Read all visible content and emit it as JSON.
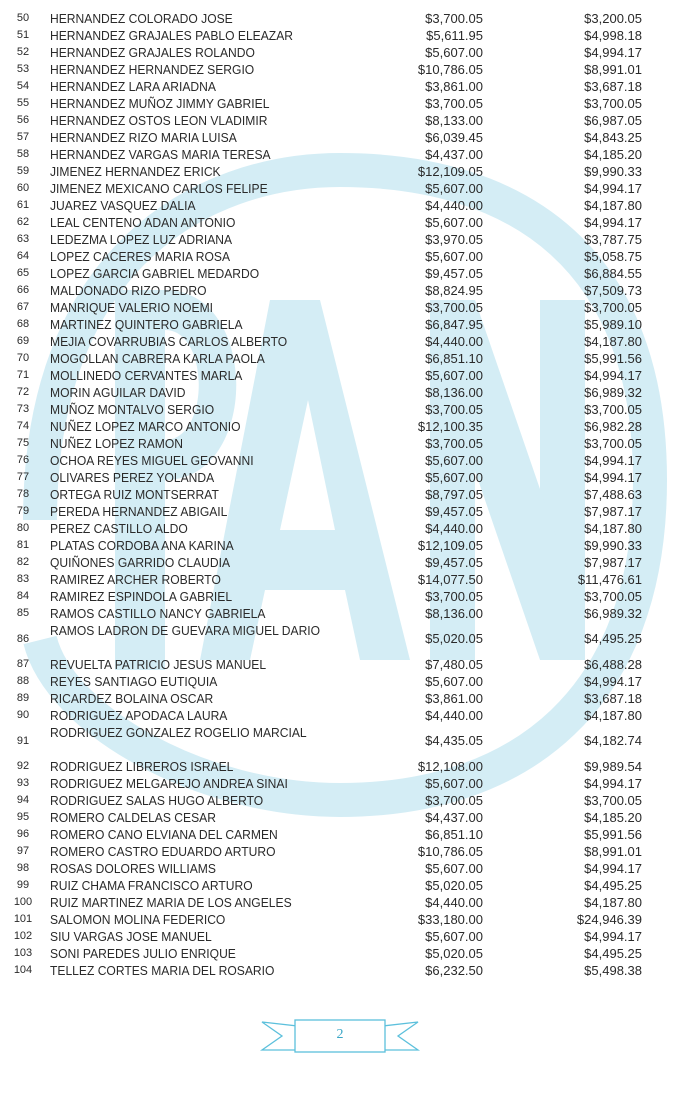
{
  "watermark": {
    "logo_text": "PAN",
    "color": "#d4edf5"
  },
  "accent_color": "#3aa6c6",
  "rows": [
    {
      "n": "50",
      "name": "HERNANDEZ COLORADO JOSE",
      "a": "$3,700.05",
      "b": "$3,200.05"
    },
    {
      "n": "51",
      "name": "HERNANDEZ GRAJALES PABLO ELEAZAR",
      "a": "$5,611.95",
      "b": "$4,998.18"
    },
    {
      "n": "52",
      "name": "HERNANDEZ GRAJALES ROLANDO",
      "a": "$5,607.00",
      "b": "$4,994.17"
    },
    {
      "n": "53",
      "name": "HERNANDEZ HERNANDEZ SERGIO",
      "a": "$10,786.05",
      "b": "$8,991.01"
    },
    {
      "n": "54",
      "name": "HERNANDEZ LARA ARIADNA",
      "a": "$3,861.00",
      "b": "$3,687.18"
    },
    {
      "n": "55",
      "name": "HERNANDEZ MUÑOZ JIMMY GABRIEL",
      "a": "$3,700.05",
      "b": "$3,700.05"
    },
    {
      "n": "56",
      "name": "HERNANDEZ OSTOS LEON VLADIMIR",
      "a": "$8,133.00",
      "b": "$6,987.05"
    },
    {
      "n": "57",
      "name": "HERNANDEZ RIZO MARIA LUISA",
      "a": "$6,039.45",
      "b": "$4,843.25"
    },
    {
      "n": "58",
      "name": "HERNANDEZ VARGAS MARIA TERESA",
      "a": "$4,437.00",
      "b": "$4,185.20"
    },
    {
      "n": "59",
      "name": "JIMENEZ HERNANDEZ ERICK",
      "a": "$12,109.05",
      "b": "$9,990.33"
    },
    {
      "n": "60",
      "name": "JIMENEZ MEXICANO CARLOS FELIPE",
      "a": "$5,607.00",
      "b": "$4,994.17"
    },
    {
      "n": "61",
      "name": "JUAREZ VASQUEZ DALIA",
      "a": "$4,440.00",
      "b": "$4,187.80"
    },
    {
      "n": "62",
      "name": "LEAL CENTENO ADAN ANTONIO",
      "a": "$5,607.00",
      "b": "$4,994.17"
    },
    {
      "n": "63",
      "name": "LEDEZMA LOPEZ LUZ ADRIANA",
      "a": "$3,970.05",
      "b": "$3,787.75"
    },
    {
      "n": "64",
      "name": "LOPEZ CACERES MARIA ROSA",
      "a": "$5,607.00",
      "b": "$5,058.75"
    },
    {
      "n": "65",
      "name": "LOPEZ GARCIA GABRIEL MEDARDO",
      "a": "$9,457.05",
      "b": "$6,884.55"
    },
    {
      "n": "66",
      "name": "MALDONADO RIZO PEDRO",
      "a": "$8,824.95",
      "b": "$7,509.73"
    },
    {
      "n": "67",
      "name": "MANRIQUE VALERIO NOEMI",
      "a": "$3,700.05",
      "b": "$3,700.05"
    },
    {
      "n": "68",
      "name": "MARTINEZ QUINTERO GABRIELA",
      "a": "$6,847.95",
      "b": "$5,989.10"
    },
    {
      "n": "69",
      "name": "MEJIA COVARRUBIAS CARLOS ALBERTO",
      "a": "$4,440.00",
      "b": "$4,187.80"
    },
    {
      "n": "70",
      "name": "MOGOLLAN CABRERA KARLA PAOLA",
      "a": "$6,851.10",
      "b": "$5,991.56"
    },
    {
      "n": "71",
      "name": "MOLLINEDO CERVANTES MARLA",
      "a": "$5,607.00",
      "b": "$4,994.17"
    },
    {
      "n": "72",
      "name": "MORIN AGUILAR DAVID",
      "a": "$8,136.00",
      "b": "$6,989.32"
    },
    {
      "n": "73",
      "name": "MUÑOZ MONTALVO SERGIO",
      "a": "$3,700.05",
      "b": "$3,700.05"
    },
    {
      "n": "74",
      "name": "NUÑEZ LOPEZ MARCO ANTONIO",
      "a": "$12,100.35",
      "b": "$6,982.28"
    },
    {
      "n": "75",
      "name": "NUÑEZ LOPEZ RAMON",
      "a": "$3,700.05",
      "b": "$3,700.05"
    },
    {
      "n": "76",
      "name": "OCHOA REYES MIGUEL GEOVANNI",
      "a": "$5,607.00",
      "b": "$4,994.17"
    },
    {
      "n": "77",
      "name": "OLIVARES PEREZ YOLANDA",
      "a": "$5,607.00",
      "b": "$4,994.17"
    },
    {
      "n": "78",
      "name": "ORTEGA RUIZ MONTSERRAT",
      "a": "$8,797.05",
      "b": "$7,488.63"
    },
    {
      "n": "79",
      "name": "PEREDA HERNANDEZ ABIGAIL",
      "a": "$9,457.05",
      "b": "$7,987.17"
    },
    {
      "n": "80",
      "name": "PEREZ CASTILLO ALDO",
      "a": "$4,440.00",
      "b": "$4,187.80"
    },
    {
      "n": "81",
      "name": "PLATAS CORDOBA ANA KARINA",
      "a": "$12,109.05",
      "b": "$9,990.33"
    },
    {
      "n": "82",
      "name": "QUIÑONES GARRIDO CLAUDIA",
      "a": "$9,457.05",
      "b": "$7,987.17"
    },
    {
      "n": "83",
      "name": "RAMIREZ ARCHER ROBERTO",
      "a": "$14,077.50",
      "b": "$11,476.61"
    },
    {
      "n": "84",
      "name": "RAMIREZ ESPINDOLA GABRIEL",
      "a": "$3,700.05",
      "b": "$3,700.05"
    },
    {
      "n": "85",
      "name": "RAMOS CASTILLO NANCY GABRIELA",
      "a": "$8,136.00",
      "b": "$6,989.32"
    },
    {
      "n": "86",
      "name": "RAMOS LADRON DE GUEVARA MIGUEL DARIO",
      "a": "$5,020.05",
      "b": "$4,495.25",
      "wrap": true
    },
    {
      "n": "87",
      "name": "REVUELTA PATRICIO JESUS MANUEL",
      "a": "$7,480.05",
      "b": "$6,488.28"
    },
    {
      "n": "88",
      "name": "REYES SANTIAGO EUTIQUIA",
      "a": "$5,607.00",
      "b": "$4,994.17"
    },
    {
      "n": "89",
      "name": "RICARDEZ BOLAINA OSCAR",
      "a": "$3,861.00",
      "b": "$3,687.18"
    },
    {
      "n": "90",
      "name": "RODRIGUEZ APODACA LAURA",
      "a": "$4,440.00",
      "b": "$4,187.80"
    },
    {
      "n": "91",
      "name": "RODRIGUEZ GONZALEZ ROGELIO MARCIAL",
      "a": "$4,435.05",
      "b": "$4,182.74",
      "wrap": true
    },
    {
      "n": "92",
      "name": "RODRIGUEZ LIBREROS ISRAEL",
      "a": "$12,108.00",
      "b": "$9,989.54"
    },
    {
      "n": "93",
      "name": "RODRIGUEZ MELGAREJO ANDREA SINAI",
      "a": "$5,607.00",
      "b": "$4,994.17"
    },
    {
      "n": "94",
      "name": "RODRIGUEZ SALAS HUGO ALBERTO",
      "a": "$3,700.05",
      "b": "$3,700.05"
    },
    {
      "n": "95",
      "name": "ROMERO CALDELAS CESAR",
      "a": "$4,437.00",
      "b": "$4,185.20"
    },
    {
      "n": "96",
      "name": "ROMERO CANO ELVIANA DEL CARMEN",
      "a": "$6,851.10",
      "b": "$5,991.56"
    },
    {
      "n": "97",
      "name": "ROMERO CASTRO EDUARDO ARTURO",
      "a": "$10,786.05",
      "b": "$8,991.01"
    },
    {
      "n": "98",
      "name": "ROSAS DOLORES WILLIAMS",
      "a": "$5,607.00",
      "b": "$4,994.17"
    },
    {
      "n": "99",
      "name": "RUIZ CHAMA FRANCISCO ARTURO",
      "a": "$5,020.05",
      "b": "$4,495.25"
    },
    {
      "n": "100",
      "name": "RUIZ MARTINEZ MARIA DE LOS ANGELES",
      "a": "$4,440.00",
      "b": "$4,187.80"
    },
    {
      "n": "101",
      "name": "SALOMON MOLINA FEDERICO",
      "a": "$33,180.00",
      "b": "$24,946.39"
    },
    {
      "n": "102",
      "name": "SIU VARGAS JOSE MANUEL",
      "a": "$5,607.00",
      "b": "$4,994.17"
    },
    {
      "n": "103",
      "name": "SONI PAREDES JULIO ENRIQUE",
      "a": "$5,020.05",
      "b": "$4,495.25"
    },
    {
      "n": "104",
      "name": "TELLEZ CORTES MARIA DEL ROSARIO",
      "a": "$6,232.50",
      "b": "$5,498.38"
    }
  ],
  "footer": {
    "page_number": "2"
  }
}
